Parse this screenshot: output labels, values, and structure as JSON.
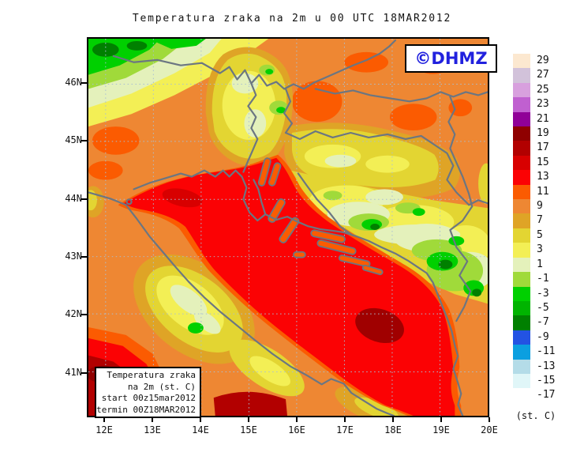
{
  "title": "Temperatura zraka na 2m u 00 UTC 18MAR2012",
  "logo": {
    "text": "©DHMZ",
    "color": "#2121de"
  },
  "info_box": {
    "lines": [
      "Temperatura zraka",
      "na 2m (st. C)",
      "start 00z15mar2012",
      "termin 00Z18MAR2012"
    ]
  },
  "axes": {
    "lat_labels": [
      "46N",
      "45N",
      "44N",
      "43N",
      "42N",
      "41N"
    ],
    "lon_labels": [
      "12E",
      "13E",
      "14E",
      "15E",
      "16E",
      "17E",
      "18E",
      "19E",
      "20E"
    ]
  },
  "legend": {
    "unit": "(st. C)",
    "items": [
      {
        "label": "29",
        "color": "#fce8d0"
      },
      {
        "label": "27",
        "color": "#d2c2da"
      },
      {
        "label": "25",
        "color": "#d8a0de"
      },
      {
        "label": "23",
        "color": "#c060d0"
      },
      {
        "label": "21",
        "color": "#900098"
      },
      {
        "label": "19",
        "color": "#8f0000"
      },
      {
        "label": "17",
        "color": "#b20000"
      },
      {
        "label": "15",
        "color": "#d80000"
      },
      {
        "label": "13",
        "color": "#fb0204"
      },
      {
        "label": "11",
        "color": "#fb5b01"
      },
      {
        "label": "9",
        "color": "#ee8733"
      },
      {
        "label": "7",
        "color": "#dfa426"
      },
      {
        "label": "5",
        "color": "#e3d532"
      },
      {
        "label": "3",
        "color": "#f3ef55"
      },
      {
        "label": "1",
        "color": "#e4f1bb"
      },
      {
        "label": "-1",
        "color": "#a0da3a"
      },
      {
        "label": "-3",
        "color": "#00d000"
      },
      {
        "label": "-5",
        "color": "#00b400"
      },
      {
        "label": "-7",
        "color": "#008000"
      },
      {
        "label": "-9",
        "color": "#2353e3"
      },
      {
        "label": "-11",
        "color": "#0b9fe0"
      },
      {
        "label": "-13",
        "color": "#b4dce8"
      },
      {
        "label": "-15",
        "color": "#e0f6f8"
      },
      {
        "label": "-17",
        "color": "#ffffff"
      }
    ]
  },
  "map_colors": {
    "base_orange": "#ee8733",
    "warm_orange": "#fb5b01",
    "sea_red": "#fb0204",
    "dark_red": "#b20000",
    "grid": "#a9bfd3",
    "border": "#6b7682"
  }
}
